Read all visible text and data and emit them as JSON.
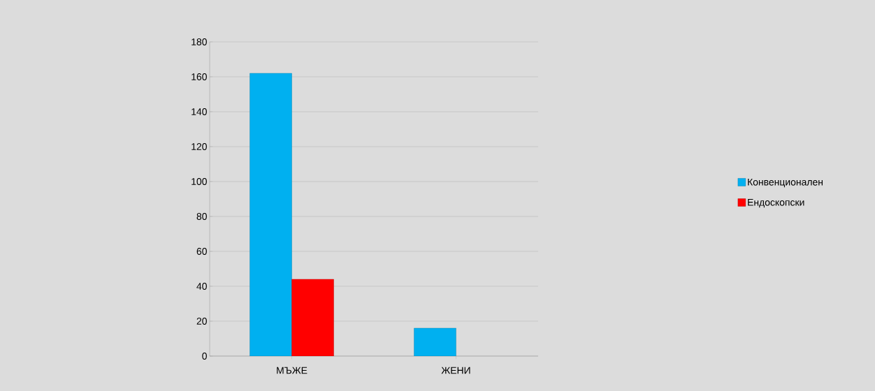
{
  "chart_data": {
    "type": "bar",
    "categories": [
      "МЪЖЕ",
      "ЖЕНИ"
    ],
    "series": [
      {
        "name": "Конвенционален",
        "color": "#00b0f0",
        "values": [
          162,
          16
        ]
      },
      {
        "name": "Ендоскопски",
        "color": "#ff0000",
        "values": [
          44,
          null
        ]
      }
    ],
    "ylim": [
      0,
      180
    ],
    "yticks": [
      0,
      20,
      40,
      60,
      80,
      100,
      120,
      140,
      160,
      180
    ],
    "grid": "y",
    "legend": "right"
  }
}
